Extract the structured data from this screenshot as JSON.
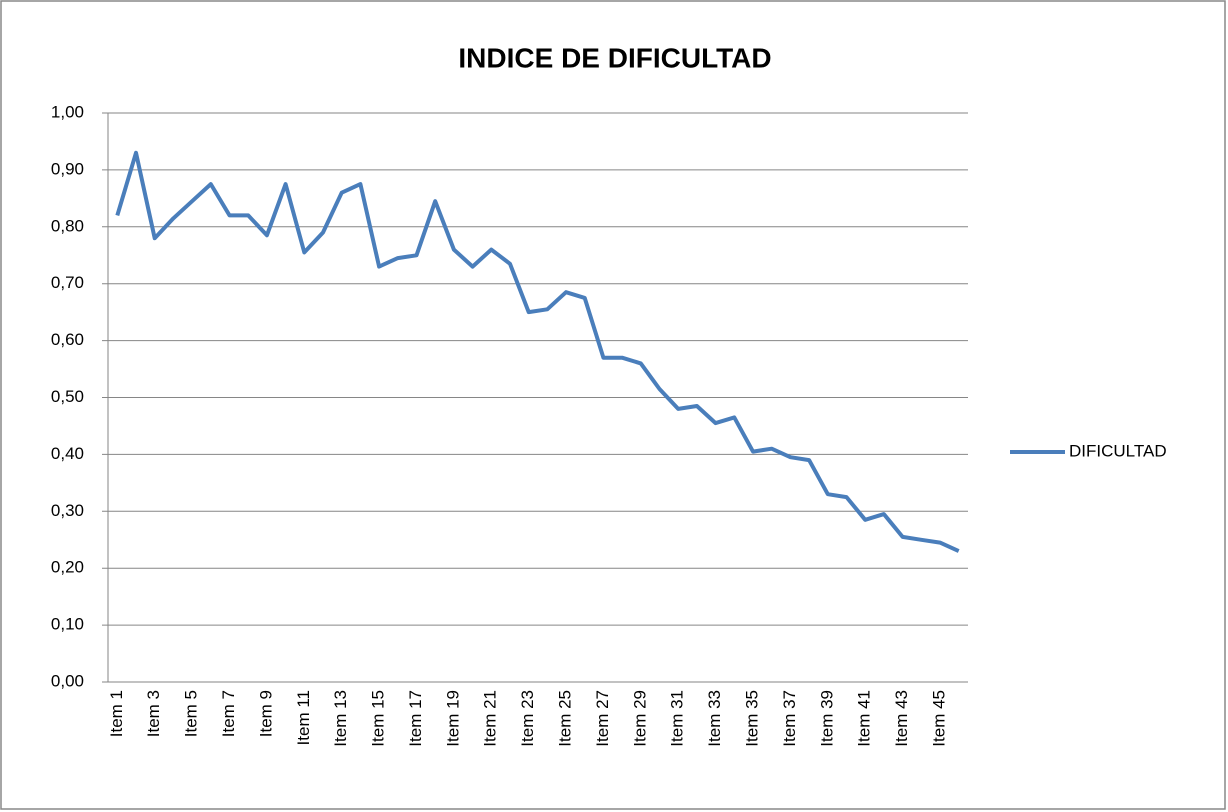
{
  "chart_data": {
    "type": "line",
    "title": "INDICE DE DIFICULTAD",
    "categories": [
      "Item 1",
      null,
      "Item 3",
      null,
      "Item 5",
      null,
      "Item 7",
      null,
      "Item 9",
      null,
      "Item 11",
      null,
      "Item 13",
      null,
      "Item 15",
      null,
      "Item 17",
      null,
      "Item 19",
      null,
      "Item 21",
      null,
      "Item 23",
      null,
      "Item 25",
      null,
      "Item 27",
      null,
      "Item 29",
      null,
      "Item 31",
      null,
      "Item 33",
      null,
      "Item 35",
      null,
      "Item 37",
      null,
      "Item 39",
      null,
      "Item 41",
      null,
      "Item 43",
      null,
      "Item 45",
      null
    ],
    "series": [
      {
        "name": "DIFICULTAD",
        "color": "#4a7ebb",
        "values": [
          0.82,
          0.93,
          0.78,
          0.815,
          0.845,
          0.875,
          0.82,
          0.82,
          0.785,
          0.875,
          0.755,
          0.79,
          0.86,
          0.875,
          0.73,
          0.745,
          0.75,
          0.845,
          0.76,
          0.73,
          0.76,
          0.735,
          0.65,
          0.655,
          0.685,
          0.675,
          0.57,
          0.57,
          0.56,
          0.515,
          0.48,
          0.485,
          0.455,
          0.465,
          0.405,
          0.41,
          0.395,
          0.39,
          0.33,
          0.325,
          0.285,
          0.295,
          0.255,
          0.25,
          0.245,
          0.23
        ]
      }
    ],
    "ylim": [
      0,
      1
    ],
    "yticks": [
      {
        "value": 0,
        "label": "0,00"
      },
      {
        "value": 0.1,
        "label": "0,10"
      },
      {
        "value": 0.2,
        "label": "0,20"
      },
      {
        "value": 0.3,
        "label": "0,30"
      },
      {
        "value": 0.4,
        "label": "0,40"
      },
      {
        "value": 0.5,
        "label": "0,50"
      },
      {
        "value": 0.6,
        "label": "0,60"
      },
      {
        "value": 0.7,
        "label": "0,70"
      },
      {
        "value": 0.8,
        "label": "0,80"
      },
      {
        "value": 0.9,
        "label": "0,90"
      },
      {
        "value": 1,
        "label": "1,00"
      }
    ],
    "grid": true,
    "legend": "right"
  }
}
